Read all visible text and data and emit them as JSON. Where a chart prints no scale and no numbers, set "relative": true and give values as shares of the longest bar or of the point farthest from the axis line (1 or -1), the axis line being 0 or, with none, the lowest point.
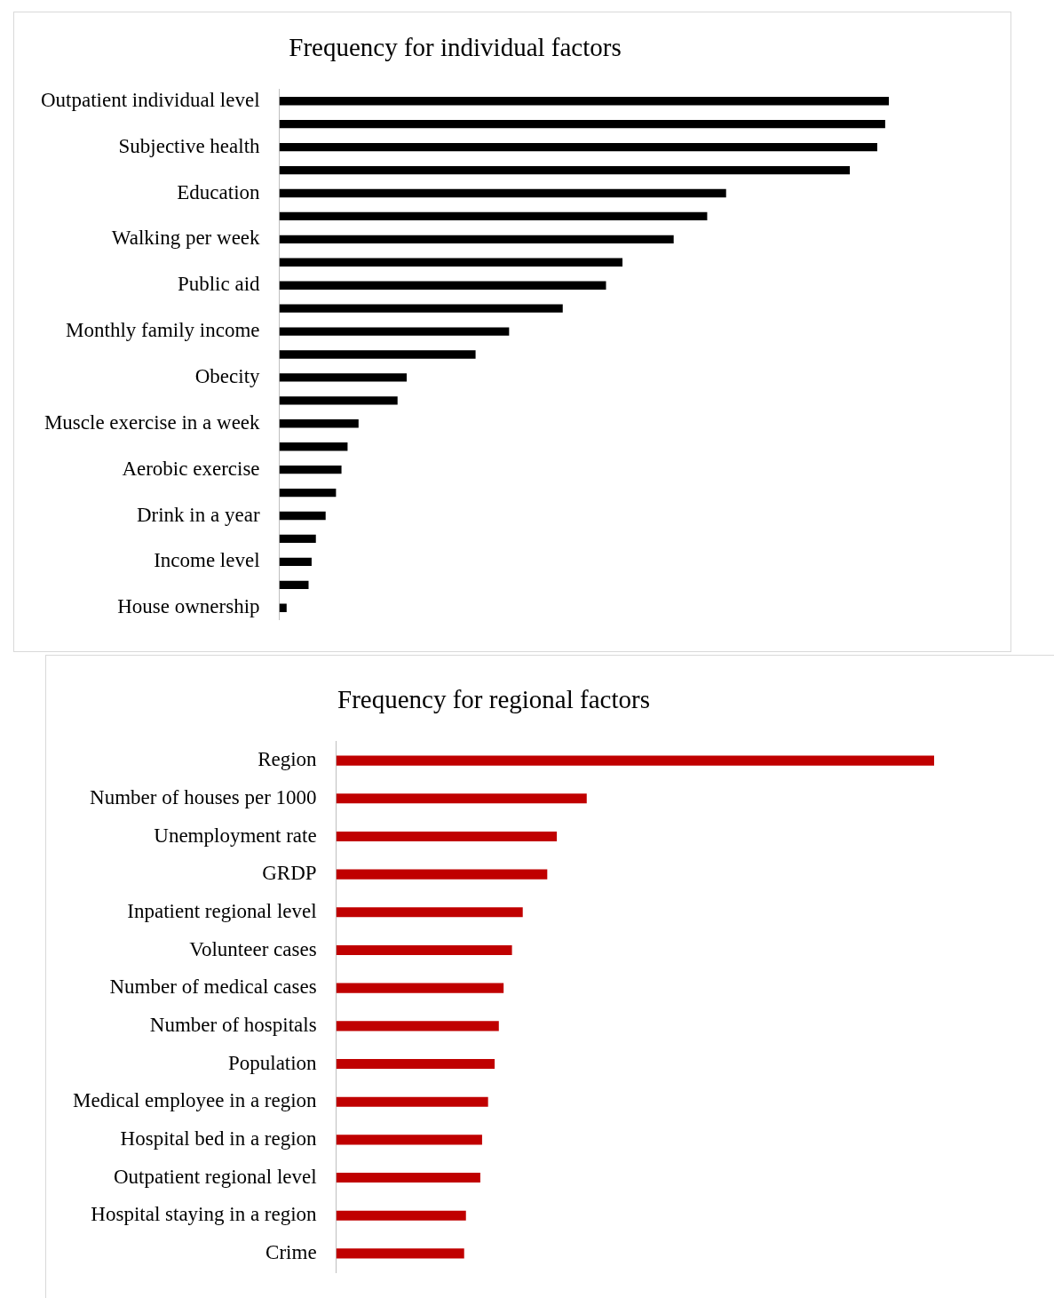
{
  "chart_data": [
    {
      "type": "bar",
      "orientation": "horizontal",
      "relative": true,
      "title": "Frequency for individual factors",
      "color": "#000000",
      "categories": [
        "Outpatient individual level",
        null,
        "Subjective health",
        null,
        "Education",
        null,
        "Walking per week",
        null,
        "Public aid",
        null,
        "Monthly family income",
        null,
        "Obecity",
        null,
        "Muscle exercise in a week",
        null,
        "Aerobic exercise",
        null,
        "Drink in a year",
        null,
        "Income level",
        null,
        "House ownership"
      ],
      "values": [
        1,
        0.994,
        0.981,
        0.936,
        0.733,
        0.702,
        0.647,
        0.563,
        0.536,
        0.465,
        0.377,
        0.322,
        0.209,
        0.194,
        0.13,
        0.112,
        0.102,
        0.093,
        0.076,
        0.06,
        0.053,
        0.048,
        0.012
      ]
    },
    {
      "type": "bar",
      "orientation": "horizontal",
      "relative": true,
      "title": "Frequency for regional factors",
      "color": "#c00000",
      "categories": [
        "Region",
        "Number of houses per 1000",
        "Unemployment rate",
        "GRDP",
        "Inpatient regional level",
        "Volunteer cases",
        "Number of medical cases",
        "Number of hospitals",
        "Population",
        "Medical employee in a region",
        "Hospital bed in a region",
        "Outpatient regional level",
        "Hospital staying in a region",
        "Crime"
      ],
      "values": [
        1,
        0.419,
        0.369,
        0.353,
        0.312,
        0.294,
        0.28,
        0.272,
        0.265,
        0.254,
        0.244,
        0.241,
        0.217,
        0.214
      ]
    }
  ]
}
